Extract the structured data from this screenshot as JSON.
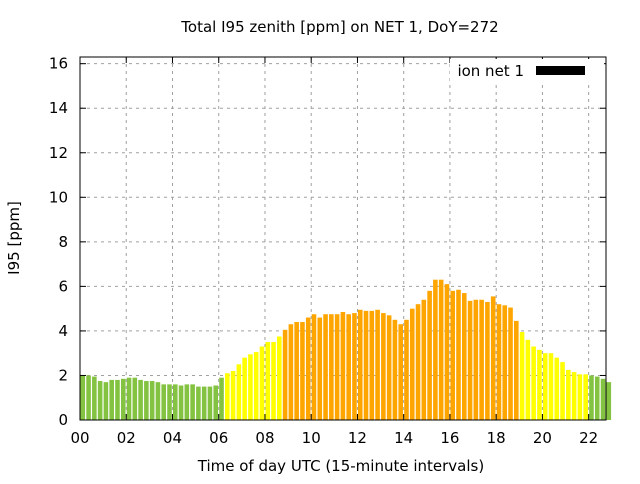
{
  "chart_data": {
    "type": "bar",
    "title": "Total I95 zenith [ppm] on NET 1, DoY=272",
    "xlabel": "Time of day UTC (15-minute intervals)",
    "ylabel": "I95 [ppm]",
    "xlim": [
      0,
      22.75
    ],
    "ylim": [
      0,
      16.3
    ],
    "grid": true,
    "legend": {
      "label": "ion net 1",
      "placement": "top-right"
    },
    "xticks": [
      0,
      2,
      4,
      6,
      8,
      10,
      12,
      14,
      16,
      18,
      20,
      22
    ],
    "xtick_labels": [
      "00",
      "02",
      "04",
      "06",
      "08",
      "10",
      "12",
      "14",
      "16",
      "18",
      "20",
      "22"
    ],
    "yticks": [
      0,
      2,
      4,
      6,
      8,
      10,
      12,
      14,
      16
    ],
    "ytick_labels": [
      "0",
      "2",
      "4",
      "6",
      "8",
      "10",
      "12",
      "14",
      "16"
    ],
    "interval_hours": 0.25,
    "colors": {
      "low": "#84c341",
      "mid": "#ffff00",
      "high": "#ffa500",
      "legend": "#000000"
    },
    "thresholds": [
      2,
      4
    ],
    "values": [
      2.0,
      2.0,
      1.95,
      1.75,
      1.7,
      1.8,
      1.8,
      1.85,
      1.9,
      1.9,
      1.8,
      1.75,
      1.75,
      1.7,
      1.6,
      1.6,
      1.6,
      1.55,
      1.6,
      1.6,
      1.5,
      1.5,
      1.5,
      1.55,
      1.9,
      2.1,
      2.2,
      2.5,
      2.8,
      2.95,
      3.05,
      3.3,
      3.5,
      3.5,
      3.75,
      4.05,
      4.3,
      4.4,
      4.4,
      4.6,
      4.75,
      4.6,
      4.75,
      4.75,
      4.75,
      4.85,
      4.75,
      4.8,
      4.95,
      4.9,
      4.9,
      4.95,
      4.8,
      4.7,
      4.5,
      4.3,
      4.5,
      5.0,
      5.2,
      5.4,
      5.8,
      6.3,
      6.3,
      6.1,
      5.8,
      5.85,
      5.7,
      5.35,
      5.4,
      5.4,
      5.3,
      5.55,
      5.2,
      5.15,
      5.05,
      4.45,
      3.95,
      3.6,
      3.3,
      3.15,
      3.0,
      3.0,
      2.8,
      2.6,
      2.25,
      2.15,
      2.05,
      2.05,
      2.0,
      1.95,
      1.85,
      1.7
    ]
  }
}
